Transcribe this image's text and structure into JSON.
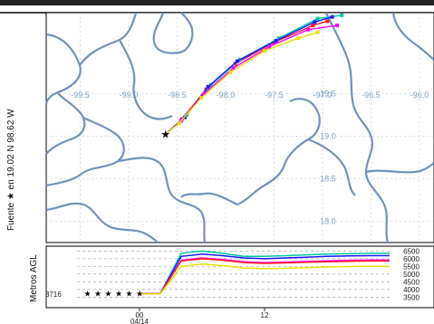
{
  "chart_data": [
    {
      "type": "line",
      "panel": "map",
      "source_label": "Fuente ★ en 19.02 N 98.62 W",
      "source_point": {
        "lon": -98.62,
        "lat": 19.02
      },
      "lon_ticks": [
        {
          "value": -99.5,
          "label": "-99.5"
        },
        {
          "value": -99.0,
          "label": "-99.0"
        },
        {
          "value": -98.5,
          "label": "-98.5"
        },
        {
          "value": -98.0,
          "label": "-98.0"
        },
        {
          "value": -97.5,
          "label": "-97.5"
        },
        {
          "value": -97.0,
          "label": "-97.0"
        },
        {
          "value": -96.5,
          "label": "-96.5"
        },
        {
          "value": -96.0,
          "label": "-96.0"
        }
      ],
      "lat_ticks": [
        {
          "value": 19.0,
          "label": "19.0"
        },
        {
          "value": 18.5,
          "label": "18.5"
        },
        {
          "value": 18.0,
          "label": "18.0"
        }
      ],
      "extra_lat_label": {
        "value": 19.5,
        "label": "19.5"
      },
      "grid": true,
      "series": [
        {
          "color": "#ff1a1a",
          "lon": [
            -98.62,
            -98.45,
            -98.2,
            -97.9,
            -97.5,
            -97.1,
            -96.95
          ],
          "lat": [
            19.02,
            19.2,
            19.55,
            19.85,
            20.1,
            20.3,
            20.35
          ]
        },
        {
          "color": "#00c8a0",
          "lon": [
            -98.62,
            -98.4,
            -98.15,
            -97.85,
            -97.45,
            -97.05,
            -96.8
          ],
          "lat": [
            19.02,
            19.25,
            19.6,
            19.9,
            20.15,
            20.38,
            20.42
          ]
        },
        {
          "color": "#1a1aff",
          "lon": [
            -98.62,
            -98.42,
            -98.18,
            -97.88,
            -97.48,
            -97.08,
            -96.9
          ],
          "lat": [
            19.02,
            19.22,
            19.58,
            19.88,
            20.12,
            20.34,
            20.4
          ]
        },
        {
          "color": "#ff00ff",
          "lon": [
            -98.62,
            -98.46,
            -98.22,
            -97.92,
            -97.55,
            -97.15,
            -96.85
          ],
          "lat": [
            19.02,
            19.18,
            19.5,
            19.8,
            20.05,
            20.25,
            20.3
          ]
        },
        {
          "color": "#e6e000",
          "lon": [
            -98.62,
            -98.48,
            -98.25,
            -97.95,
            -97.6,
            -97.25,
            -97.05
          ],
          "lat": [
            19.02,
            19.15,
            19.45,
            19.75,
            20.0,
            20.15,
            20.22
          ]
        }
      ]
    },
    {
      "type": "line",
      "panel": "height",
      "ylabel": "Metros AGL",
      "start_value": "3716",
      "y_ticks": [
        "6500",
        "6000",
        "5500",
        "5000",
        "4500",
        "4000",
        "3500"
      ],
      "x_ticks": [
        {
          "hour": 0,
          "label": "00"
        },
        {
          "hour": 12,
          "label": "12"
        }
      ],
      "x_date_label": "04/14",
      "ylim": [
        3400,
        6700
      ],
      "grid": true,
      "series": [
        {
          "color": "#00c8a0",
          "x": [
            0,
            2,
            4,
            6,
            8,
            10,
            12,
            14,
            16,
            18,
            20,
            22,
            24
          ],
          "y": [
            3716,
            3750,
            6350,
            6500,
            6350,
            6150,
            6150,
            6200,
            6250,
            6300,
            6320,
            6350,
            6350
          ]
        },
        {
          "color": "#1a1aff",
          "x": [
            0,
            2,
            4,
            6,
            8,
            10,
            12,
            14,
            16,
            18,
            20,
            22,
            24
          ],
          "y": [
            3716,
            3740,
            6150,
            6300,
            6200,
            6050,
            6000,
            6050,
            6100,
            6150,
            6180,
            6200,
            6200
          ]
        },
        {
          "color": "#ff00ff",
          "x": [
            0,
            2,
            4,
            6,
            8,
            10,
            12,
            14,
            16,
            18,
            20,
            22,
            24
          ],
          "y": [
            3716,
            3730,
            5900,
            6050,
            5950,
            5800,
            5750,
            5780,
            5820,
            5860,
            5900,
            5920,
            5920
          ]
        },
        {
          "color": "#ff1a1a",
          "x": [
            0,
            2,
            4,
            6,
            8,
            10,
            12,
            14,
            16,
            18,
            20,
            22,
            24
          ],
          "y": [
            3716,
            3730,
            5850,
            6000,
            5900,
            5750,
            5700,
            5730,
            5770,
            5800,
            5830,
            5850,
            5850
          ]
        },
        {
          "color": "#e6e000",
          "x": [
            0,
            2,
            4,
            6,
            8,
            10,
            12,
            14,
            16,
            18,
            20,
            22,
            24
          ],
          "y": [
            3716,
            3720,
            5500,
            5650,
            5550,
            5400,
            5350,
            5380,
            5420,
            5460,
            5490,
            5510,
            5510
          ]
        }
      ]
    }
  ]
}
